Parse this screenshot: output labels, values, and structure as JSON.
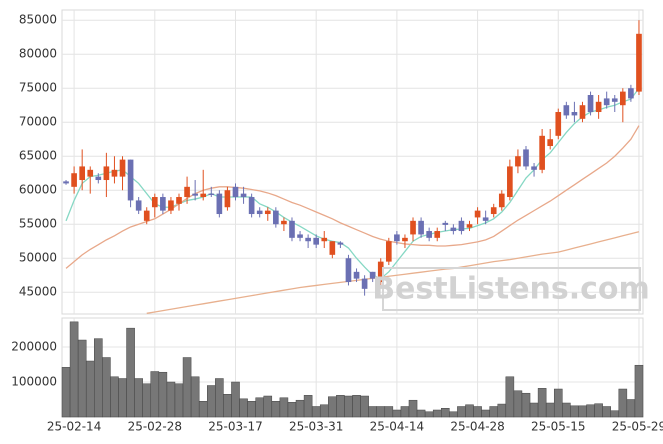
{
  "chart_data": [
    {
      "type": "candlestick",
      "open": [
        61300,
        60500,
        61500,
        62000,
        62000,
        61500,
        62000,
        62000,
        64500,
        58500,
        55500,
        57500,
        59000,
        57000,
        58000,
        59000,
        59500,
        59000,
        59500,
        59500,
        57500,
        60500,
        59500,
        59000,
        57000,
        56500,
        57000,
        55000,
        55500,
        53500,
        53000,
        53000,
        52500,
        50500,
        52300,
        50000,
        48000,
        47000,
        48000,
        46500,
        49500,
        53500,
        52500,
        53500,
        55500,
        54000,
        53000,
        55200,
        54500,
        55500,
        54500,
        56000,
        56000,
        56500,
        57500,
        59000,
        63500,
        66000,
        63500,
        63000,
        66500,
        68000,
        72500,
        71500,
        70500,
        74000,
        71500,
        73500,
        73500,
        72500,
        75000,
        74500
      ],
      "high": [
        61500,
        63500,
        66000,
        63500,
        62500,
        65500,
        65000,
        65000,
        64500,
        59000,
        57500,
        59500,
        59500,
        59000,
        59500,
        62000,
        61500,
        63000,
        60500,
        60000,
        60500,
        61000,
        60500,
        59500,
        57500,
        57500,
        57500,
        56000,
        56000,
        54000,
        53500,
        53500,
        54000,
        52500,
        52500,
        50500,
        48500,
        47500,
        48000,
        50000,
        53000,
        54000,
        53500,
        56000,
        56000,
        54500,
        54500,
        55500,
        55000,
        56000,
        55500,
        57500,
        57000,
        58000,
        60000,
        64500,
        66000,
        66500,
        64000,
        69000,
        69000,
        72000,
        73000,
        73000,
        73000,
        74500,
        74000,
        74500,
        74000,
        75000,
        75500,
        85000
      ],
      "low": [
        60800,
        59500,
        60000,
        59500,
        61000,
        59000,
        61000,
        60000,
        57500,
        56500,
        55000,
        56000,
        56500,
        56500,
        57000,
        58000,
        58500,
        58500,
        59000,
        56000,
        57000,
        58500,
        58000,
        56000,
        56000,
        55500,
        54500,
        54000,
        52500,
        52500,
        51500,
        51500,
        51500,
        50000,
        51500,
        46000,
        46500,
        44500,
        46500,
        46000,
        49000,
        52000,
        51500,
        52500,
        53000,
        52500,
        52500,
        54000,
        53500,
        53500,
        54000,
        55000,
        55000,
        56000,
        57000,
        58500,
        62500,
        63000,
        62000,
        62500,
        66000,
        67500,
        70500,
        70000,
        70000,
        71000,
        70500,
        72000,
        71500,
        70000,
        73000,
        74000
      ],
      "close": [
        61000,
        62500,
        63500,
        63000,
        61500,
        63500,
        63000,
        64500,
        58500,
        57000,
        57000,
        59000,
        57000,
        58500,
        59000,
        60500,
        59200,
        59500,
        59300,
        56500,
        60000,
        59000,
        59000,
        56500,
        56500,
        57000,
        55000,
        55500,
        53000,
        53000,
        52500,
        52000,
        53000,
        52500,
        52000,
        46500,
        47000,
        45500,
        47000,
        49500,
        52500,
        52500,
        53000,
        55500,
        53500,
        53000,
        54000,
        54900,
        54000,
        54000,
        55000,
        57000,
        55500,
        57500,
        59500,
        63500,
        65000,
        63500,
        63000,
        68000,
        67500,
        71500,
        71000,
        71000,
        72500,
        71500,
        73000,
        72500,
        73000,
        74500,
        73500,
        83000
      ],
      "up_color": "#e0501f",
      "down_color": "#6b70b3",
      "lines": [
        {
          "color": "#86d8c4",
          "values": [
            55500,
            58500,
            61000,
            62000,
            62200,
            62500,
            62800,
            63000,
            62000,
            61000,
            59500,
            58000,
            57500,
            57500,
            58000,
            58500,
            58700,
            59000,
            59500,
            59000,
            59000,
            59000,
            59000,
            59000,
            58000,
            57500,
            56800,
            56000,
            55300,
            54700,
            54000,
            53300,
            52800,
            52500,
            52300,
            51500,
            50000,
            48700,
            47500,
            47000,
            48000,
            49500,
            51000,
            52500,
            53200,
            53500,
            53800,
            54000,
            54200,
            54300,
            54400,
            54800,
            55200,
            55800,
            56800,
            58200,
            60000,
            61800,
            63000,
            64500,
            65500,
            67000,
            68500,
            69800,
            70800,
            71500,
            71800,
            72200,
            72500,
            73000,
            73400,
            75000
          ]
        },
        {
          "color": "#e8a88a",
          "values": [
            48500,
            49500,
            50500,
            51300,
            52000,
            52700,
            53300,
            54000,
            54600,
            55000,
            55400,
            55800,
            56500,
            57200,
            58000,
            58800,
            59500,
            60000,
            60300,
            60500,
            60500,
            60400,
            60300,
            60100,
            59900,
            59600,
            59200,
            58700,
            58200,
            57800,
            57300,
            56800,
            56300,
            55800,
            55200,
            54700,
            54200,
            53700,
            53200,
            52800,
            52500,
            52300,
            52100,
            52000,
            51900,
            51900,
            51800,
            51800,
            51900,
            52000,
            52200,
            52400,
            52700,
            53200,
            54000,
            54800,
            55600,
            56300,
            57000,
            57700,
            58400,
            59200,
            60000,
            60800,
            61600,
            62400,
            63200,
            64000,
            65000,
            66200,
            67500,
            69500
          ]
        },
        {
          "color": "#e8b08e",
          "values": [
            null,
            null,
            null,
            null,
            null,
            null,
            null,
            null,
            null,
            null,
            41900,
            42100,
            42300,
            42500,
            42700,
            42900,
            43100,
            43300,
            43500,
            43700,
            43900,
            44100,
            44300,
            44500,
            44700,
            44900,
            45100,
            45300,
            45500,
            45700,
            45850,
            46000,
            46150,
            46300,
            46450,
            46600,
            46750,
            46900,
            47050,
            47200,
            47350,
            47500,
            47650,
            47800,
            47950,
            48100,
            48250,
            48400,
            48500,
            48700,
            48900,
            49100,
            49300,
            49500,
            49650,
            49800,
            50000,
            50200,
            50400,
            50600,
            50750,
            50900,
            51200,
            51500,
            51800,
            52100,
            52400,
            52700,
            53000,
            53300,
            53600,
            53900
          ]
        }
      ],
      "ylim": [
        41800,
        86500
      ],
      "yticks": [
        45000,
        50000,
        55000,
        60000,
        65000,
        70000,
        75000,
        80000,
        85000
      ],
      "grid": true,
      "watermark": "BestListens.com"
    },
    {
      "type": "bar",
      "categories": [
        null,
        "25-02-14",
        null,
        null,
        null,
        null,
        null,
        null,
        null,
        null,
        null,
        "25-02-28",
        null,
        null,
        null,
        null,
        null,
        null,
        null,
        null,
        null,
        "25-03-17",
        null,
        null,
        null,
        null,
        null,
        null,
        null,
        null,
        null,
        "25-03-31",
        null,
        null,
        null,
        null,
        null,
        null,
        null,
        null,
        null,
        "25-04-14",
        null,
        null,
        null,
        null,
        null,
        null,
        null,
        null,
        null,
        "25-04-28",
        null,
        null,
        null,
        null,
        null,
        null,
        null,
        null,
        null,
        "25-05-15",
        null,
        null,
        null,
        null,
        null,
        null,
        null,
        null,
        null,
        "25-05-29"
      ],
      "values": [
        142000,
        272000,
        220000,
        160000,
        224000,
        170000,
        115000,
        110000,
        254000,
        110000,
        95000,
        130000,
        128000,
        100000,
        95000,
        170000,
        115000,
        45000,
        90000,
        110000,
        65000,
        100000,
        52000,
        45000,
        55000,
        60000,
        45000,
        55000,
        42000,
        48000,
        62000,
        30000,
        35000,
        58000,
        62000,
        60000,
        62000,
        60000,
        30000,
        30000,
        30000,
        20000,
        30000,
        48000,
        20000,
        15000,
        20000,
        25000,
        15000,
        30000,
        35000,
        30000,
        20000,
        30000,
        37000,
        115000,
        75000,
        68000,
        40000,
        82000,
        40000,
        80000,
        40000,
        32000,
        32000,
        35000,
        38000,
        30000,
        18000,
        80000,
        50000,
        148000
      ],
      "color": "#777777",
      "ylim": [
        0,
        283000
      ],
      "yticks": [
        100000,
        200000
      ],
      "grid": true
    }
  ]
}
